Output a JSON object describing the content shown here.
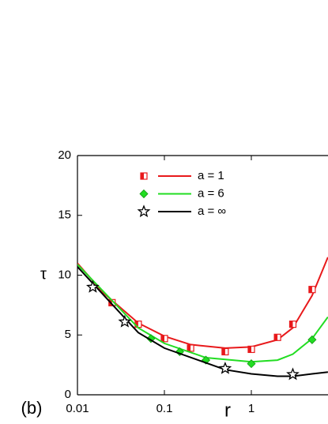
{
  "chart_data": {
    "type": "line",
    "x_label": "r",
    "y_label": "τ",
    "annotation": "(b)",
    "xlim": [
      0.01,
      10
    ],
    "ylim": [
      0,
      20
    ],
    "x_log": true,
    "xticks": [
      0.01,
      0.1,
      1
    ],
    "yticks": [
      0,
      5,
      10,
      15,
      20
    ],
    "series": [
      {
        "name": "a = 1",
        "color": "#e8191b",
        "marker": "square",
        "x": [
          0.025,
          0.05,
          0.1,
          0.2,
          0.5,
          1,
          2,
          3,
          5
        ],
        "values": [
          7.7,
          5.9,
          4.7,
          3.9,
          3.6,
          3.8,
          4.8,
          5.9,
          8.8
        ],
        "fit_x": [
          0.01,
          0.02,
          0.05,
          0.1,
          0.2,
          0.5,
          1,
          2,
          3,
          5,
          7.6
        ],
        "fit_values": [
          11,
          8.5,
          6,
          4.9,
          4.2,
          3.9,
          4.0,
          4.6,
          5.6,
          8.3,
          11.5
        ]
      },
      {
        "name": "a = 6",
        "color": "#22dd22",
        "marker": "diamond",
        "x": [
          0.07,
          0.15,
          0.3,
          1,
          5
        ],
        "values": [
          4.7,
          3.6,
          2.9,
          2.6,
          4.6
        ],
        "fit_x": [
          0.01,
          0.05,
          0.1,
          0.3,
          1,
          2,
          3,
          5,
          7.6
        ],
        "fit_values": [
          10.9,
          5.6,
          4.3,
          3.1,
          2.75,
          2.9,
          3.4,
          4.7,
          6.5
        ]
      },
      {
        "name": "a = ∞",
        "color": "#000000",
        "marker": "star",
        "x": [
          0.015,
          0.035,
          0.5,
          3
        ],
        "values": [
          9.0,
          6.1,
          2.2,
          1.7
        ],
        "fit_x": [
          0.01,
          0.05,
          0.1,
          0.5,
          1,
          2,
          3,
          5,
          7.6
        ],
        "fit_values": [
          10.7,
          5.2,
          3.9,
          2.1,
          1.75,
          1.55,
          1.55,
          1.75,
          1.9
        ]
      }
    ]
  }
}
